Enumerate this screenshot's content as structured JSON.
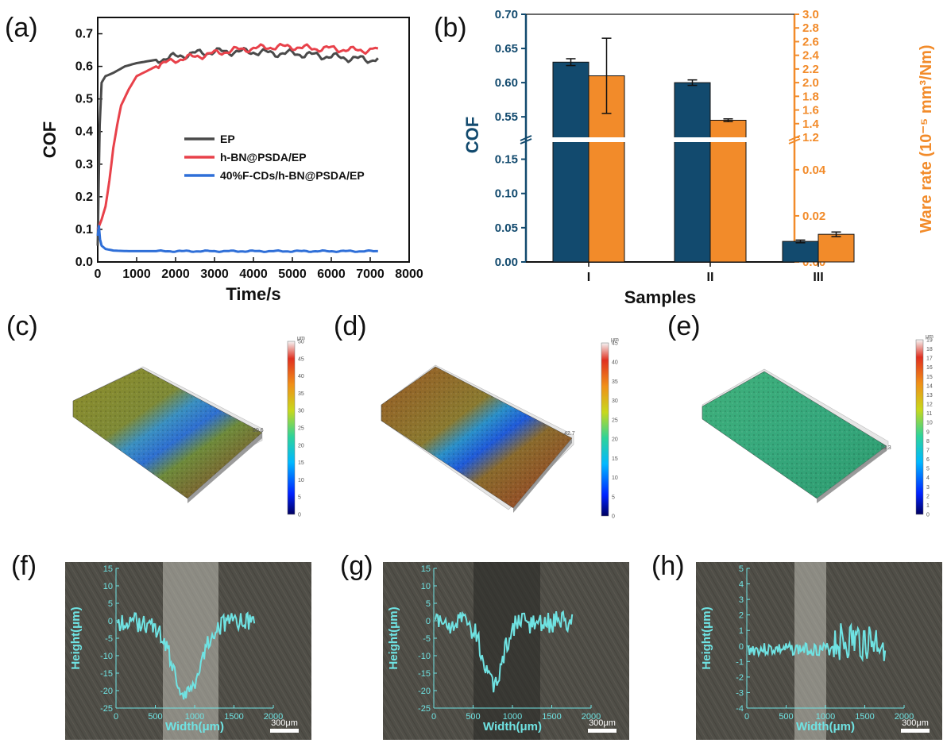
{
  "panel_labels": {
    "a": "(a)",
    "b": "(b)",
    "c": "(c)",
    "d": "(d)",
    "e": "(e)",
    "f": "(f)",
    "g": "(g)",
    "h": "(h)"
  },
  "colors": {
    "ep": "#4a4a4a",
    "hbn": "#e8414a",
    "fcd": "#2f6fd8",
    "cof_bar": "#124a6e",
    "wear_bar": "#f28b2a",
    "profile": "#6fe3e3"
  },
  "chart_data": [
    {
      "id": "a",
      "type": "line",
      "xlabel": "Time/s",
      "ylabel": "COF",
      "xlim": [
        0,
        8000
      ],
      "ylim": [
        0,
        0.75
      ],
      "xticks": [
        "0",
        "1000",
        "2000",
        "3000",
        "4000",
        "5000",
        "6000",
        "7000",
        "8000"
      ],
      "yticks": [
        "0.0",
        "0.1",
        "0.2",
        "0.3",
        "0.4",
        "0.5",
        "0.6",
        "0.7"
      ],
      "legend_position": "center-right",
      "series": [
        {
          "name": "EP",
          "x": [
            0,
            50,
            100,
            200,
            400,
            700,
            1000,
            1500,
            2000,
            2500,
            3000,
            3500,
            4000,
            4500,
            5000,
            5500,
            6000,
            6500,
            7000,
            7200
          ],
          "y": [
            0.05,
            0.42,
            0.55,
            0.57,
            0.58,
            0.6,
            0.61,
            0.62,
            0.63,
            0.64,
            0.645,
            0.645,
            0.645,
            0.64,
            0.64,
            0.635,
            0.63,
            0.625,
            0.62,
            0.625
          ]
        },
        {
          "name": "h-BN@PSDA/EP",
          "x": [
            0,
            100,
            200,
            300,
            400,
            500,
            600,
            800,
            1000,
            1500,
            2000,
            2500,
            3000,
            3500,
            4000,
            4500,
            5000,
            5500,
            6000,
            6500,
            7000,
            7200
          ],
          "y": [
            0.1,
            0.13,
            0.17,
            0.25,
            0.35,
            0.42,
            0.48,
            0.53,
            0.57,
            0.6,
            0.62,
            0.63,
            0.64,
            0.65,
            0.655,
            0.66,
            0.66,
            0.655,
            0.655,
            0.65,
            0.65,
            0.655
          ]
        },
        {
          "name": "40%F-CDs/h-BN@PSDA/EP",
          "x": [
            0,
            30,
            60,
            100,
            200,
            400,
            800,
            1500,
            3000,
            5000,
            7200
          ],
          "y": [
            0.08,
            0.11,
            0.07,
            0.05,
            0.04,
            0.035,
            0.033,
            0.033,
            0.033,
            0.033,
            0.033
          ]
        }
      ]
    },
    {
      "id": "b",
      "type": "bar",
      "xlabel": "Samples",
      "ylabel": "COF",
      "ylabel_right": "Ware rate (10⁻⁵ mm³/Nm)",
      "categories": [
        "I",
        "II",
        "III"
      ],
      "y_left_ticks_upper": [
        "0.70",
        "0.65",
        "0.60",
        "0.55"
      ],
      "y_left_ticks_lower": [
        "0.15",
        "0.10",
        "0.05",
        "0.00"
      ],
      "y_right_ticks_upper": [
        "3.0",
        "2.8",
        "2.6",
        "2.4",
        "2.2",
        "2.0",
        "1.8",
        "1.6",
        "1.4",
        "1.2"
      ],
      "y_right_ticks_lower": [
        "0.04",
        "0.02",
        "0.00"
      ],
      "series": [
        {
          "name": "COF",
          "values": [
            0.63,
            0.6,
            0.03
          ],
          "errors": [
            0.005,
            0.004,
            0.002
          ]
        },
        {
          "name": "Wear rate",
          "values": [
            2.1,
            1.45,
            0.012
          ],
          "errors": [
            0.55,
            0.02,
            0.001
          ]
        }
      ]
    },
    {
      "id": "f",
      "type": "line",
      "xlabel": "Width(μm)",
      "ylabel": "Height(μm)",
      "xticks": [
        "0",
        "500",
        "1000",
        "1500",
        "2000"
      ],
      "yticks": [
        "15",
        "10",
        "5",
        "0",
        "-5",
        "-10",
        "-15",
        "-20",
        "-25"
      ],
      "scalebar": "300μm"
    },
    {
      "id": "g",
      "type": "line",
      "xlabel": "Width(μm)",
      "ylabel": "Height(μm)",
      "xticks": [
        "0",
        "500",
        "1000",
        "1500",
        "2000"
      ],
      "yticks": [
        "15",
        "10",
        "5",
        "0",
        "-5",
        "-10",
        "-15",
        "-20",
        "-25"
      ],
      "scalebar": "300μm"
    },
    {
      "id": "h",
      "type": "line",
      "xlabel": "Width(μm)",
      "ylabel": "Height(μm)",
      "xticks": [
        "0",
        "500",
        "1000",
        "1500",
        "2000"
      ],
      "yticks": [
        "5",
        "4",
        "3",
        "2",
        "1",
        "0",
        "-1",
        "-2",
        "-3",
        "-4"
      ],
      "scalebar": "300μm"
    }
  ],
  "surface_scans": {
    "c": {
      "unit": "μm",
      "scale_ticks": [
        "50",
        "45",
        "40",
        "35",
        "30",
        "25",
        "20",
        "15",
        "10",
        "5",
        "0"
      ],
      "max_label": "50.6"
    },
    "d": {
      "unit": "μm",
      "scale_ticks": [
        "45",
        "40",
        "35",
        "30",
        "25",
        "20",
        "15",
        "10",
        "5",
        "0"
      ],
      "max_label": "42.7"
    },
    "e": {
      "unit": "μm",
      "scale_ticks": [
        "19",
        "18",
        "17",
        "16",
        "15",
        "14",
        "13",
        "12",
        "11",
        "10",
        "9",
        "8",
        "7",
        "6",
        "5",
        "4",
        "3",
        "2",
        "1",
        "0"
      ],
      "max_label": "19.3"
    }
  }
}
